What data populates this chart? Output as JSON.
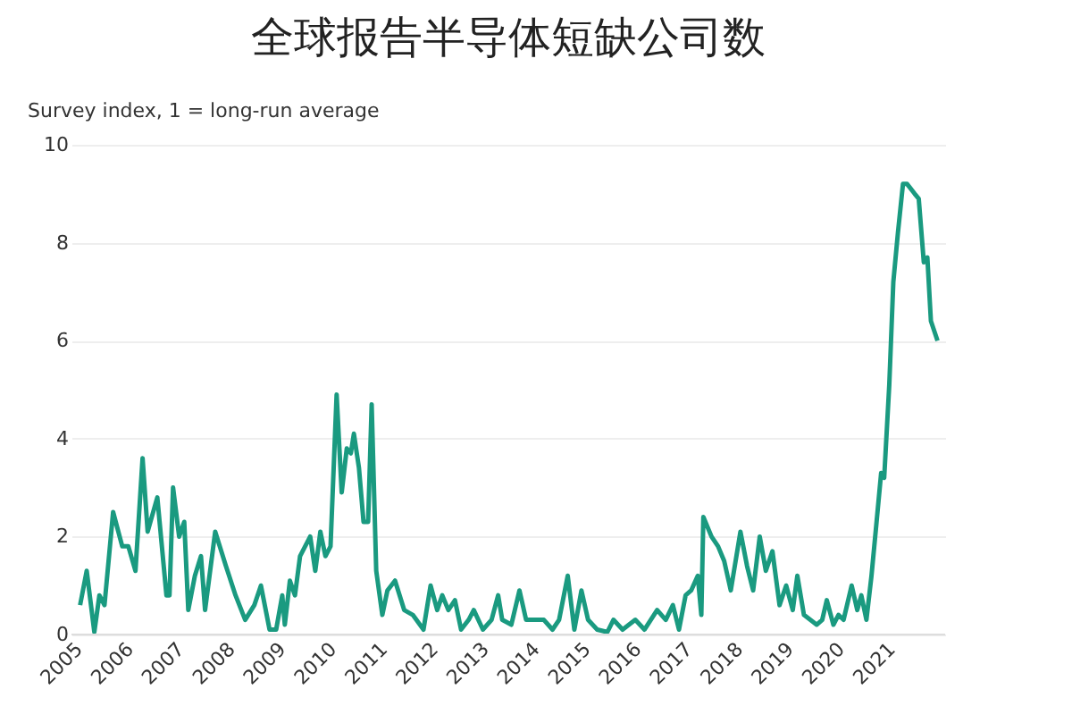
{
  "chart_data": {
    "type": "line",
    "title": "全球报告半导体短缺公司数",
    "ylabel": "Survey index, 1 = long-run average",
    "xlim": [
      2005,
      2022.2
    ],
    "xticks": [
      2005,
      2006,
      2007,
      2008,
      2009,
      2010,
      2011,
      2012,
      2013,
      2014,
      2015,
      2016,
      2017,
      2018,
      2019,
      2020,
      2021
    ],
    "ylim": [
      0,
      10
    ],
    "yticks": [
      0,
      2,
      4,
      6,
      8,
      10
    ],
    "grid": "y",
    "line_style": "solid",
    "marker": "none",
    "series": [
      {
        "color": "#1a9a80",
        "x": [
          2005.17,
          2005.3,
          2005.45,
          2005.55,
          2005.65,
          2005.82,
          2006.0,
          2006.12,
          2006.26,
          2006.4,
          2006.5,
          2006.69,
          2006.87,
          2006.93,
          2007.0,
          2007.12,
          2007.22,
          2007.3,
          2007.43,
          2007.55,
          2007.63,
          2007.83,
          2008.04,
          2008.23,
          2008.42,
          2008.6,
          2008.73,
          2008.9,
          2009.03,
          2009.15,
          2009.2,
          2009.3,
          2009.4,
          2009.5,
          2009.7,
          2009.8,
          2009.9,
          2010.0,
          2010.1,
          2010.22,
          2010.32,
          2010.42,
          2010.5,
          2010.56,
          2010.66,
          2010.75,
          2010.84,
          2010.91,
          2011.0,
          2011.12,
          2011.22,
          2011.37,
          2011.55,
          2011.72,
          2011.93,
          2012.07,
          2012.2,
          2012.3,
          2012.42,
          2012.55,
          2012.67,
          2012.82,
          2012.92,
          2013.1,
          2013.27,
          2013.4,
          2013.48,
          2013.66,
          2013.82,
          2013.95,
          2014.1,
          2014.3,
          2014.47,
          2014.6,
          2014.77,
          2014.9,
          2015.04,
          2015.17,
          2015.35,
          2015.55,
          2015.67,
          2015.85,
          2016.1,
          2016.28,
          2016.53,
          2016.7,
          2016.84,
          2016.96,
          2017.09,
          2017.2,
          2017.33,
          2017.4,
          2017.44,
          2017.6,
          2017.73,
          2017.85,
          2017.98,
          2018.17,
          2018.3,
          2018.42,
          2018.55,
          2018.67,
          2018.8,
          2018.94,
          2019.07,
          2019.2,
          2019.29,
          2019.42,
          2019.67,
          2019.78,
          2019.87,
          2020.0,
          2020.1,
          2020.2,
          2020.36,
          2020.47,
          2020.55,
          2020.65,
          2020.75,
          2020.85,
          2020.94,
          2021.0,
          2021.1,
          2021.18,
          2021.27,
          2021.37,
          2021.45,
          2021.6,
          2021.68,
          2021.78,
          2021.85,
          2021.92,
          2022.05
        ],
        "values": [
          0.6,
          1.3,
          0.05,
          0.8,
          0.6,
          2.5,
          1.8,
          1.8,
          1.3,
          3.6,
          2.1,
          2.8,
          0.8,
          0.8,
          3.0,
          2.0,
          2.3,
          0.5,
          1.2,
          1.6,
          0.5,
          2.1,
          1.4,
          0.8,
          0.3,
          0.6,
          1.0,
          0.1,
          0.1,
          0.8,
          0.2,
          1.1,
          0.8,
          1.6,
          2.0,
          1.3,
          2.1,
          1.6,
          1.8,
          4.9,
          2.9,
          3.8,
          3.7,
          4.1,
          3.4,
          2.3,
          2.3,
          4.7,
          1.3,
          0.4,
          0.9,
          1.1,
          0.5,
          0.4,
          0.1,
          1.0,
          0.5,
          0.8,
          0.5,
          0.7,
          0.1,
          0.3,
          0.5,
          0.1,
          0.3,
          0.8,
          0.3,
          0.2,
          0.9,
          0.3,
          0.3,
          0.3,
          0.1,
          0.3,
          1.2,
          0.1,
          0.9,
          0.3,
          0.1,
          0.05,
          0.3,
          0.1,
          0.3,
          0.1,
          0.5,
          0.3,
          0.6,
          0.1,
          0.8,
          0.9,
          1.2,
          0.4,
          2.4,
          2.0,
          1.8,
          1.5,
          0.9,
          2.1,
          1.4,
          0.9,
          2.0,
          1.3,
          1.7,
          0.6,
          1.0,
          0.5,
          1.2,
          0.4,
          0.2,
          0.3,
          0.7,
          0.2,
          0.4,
          0.3,
          1.0,
          0.5,
          0.8,
          0.3,
          1.2,
          2.3,
          3.3,
          3.2,
          5.1,
          7.2,
          8.2,
          9.2,
          9.2,
          9.0,
          8.9,
          7.6,
          7.7,
          6.4,
          6.0
        ]
      }
    ]
  }
}
